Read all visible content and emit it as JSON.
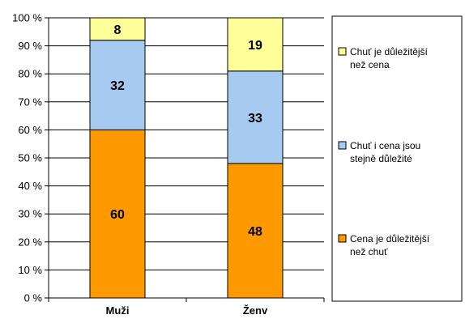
{
  "chart_data": {
    "type": "bar",
    "stacked": true,
    "percent": true,
    "categories": [
      "Muži",
      "Ženv"
    ],
    "series": [
      {
        "name": "Chuť je důležitější než cena",
        "values": [
          60,
          48
        ],
        "color": "#ff9900"
      },
      {
        "name": "Chuť i cena jsou stejně důležité",
        "values": [
          32,
          33
        ],
        "color": "#a6caf0"
      },
      {
        "name": "Cena je důležitější než chuť",
        "values": [
          8,
          19
        ],
        "color": "#ffff99"
      }
    ],
    "legend_lines": [
      [
        "Cena je důležitější",
        "než chuť"
      ],
      [
        "Chuť i cena jsou",
        "stejně důležité"
      ],
      [
        "Chuť je důležitější",
        "než cena"
      ]
    ],
    "legend_order": [
      2,
      1,
      0
    ],
    "y_ticks": [
      "0 %",
      "10 %",
      "20 %",
      "30 %",
      "40 %",
      "50 %",
      "60 %",
      "70 %",
      "80 %",
      "90 %",
      "100 %"
    ],
    "ylim": [
      0,
      100
    ],
    "grid": true,
    "legend_position": "right",
    "title": "",
    "xlabel": "",
    "ylabel": ""
  }
}
